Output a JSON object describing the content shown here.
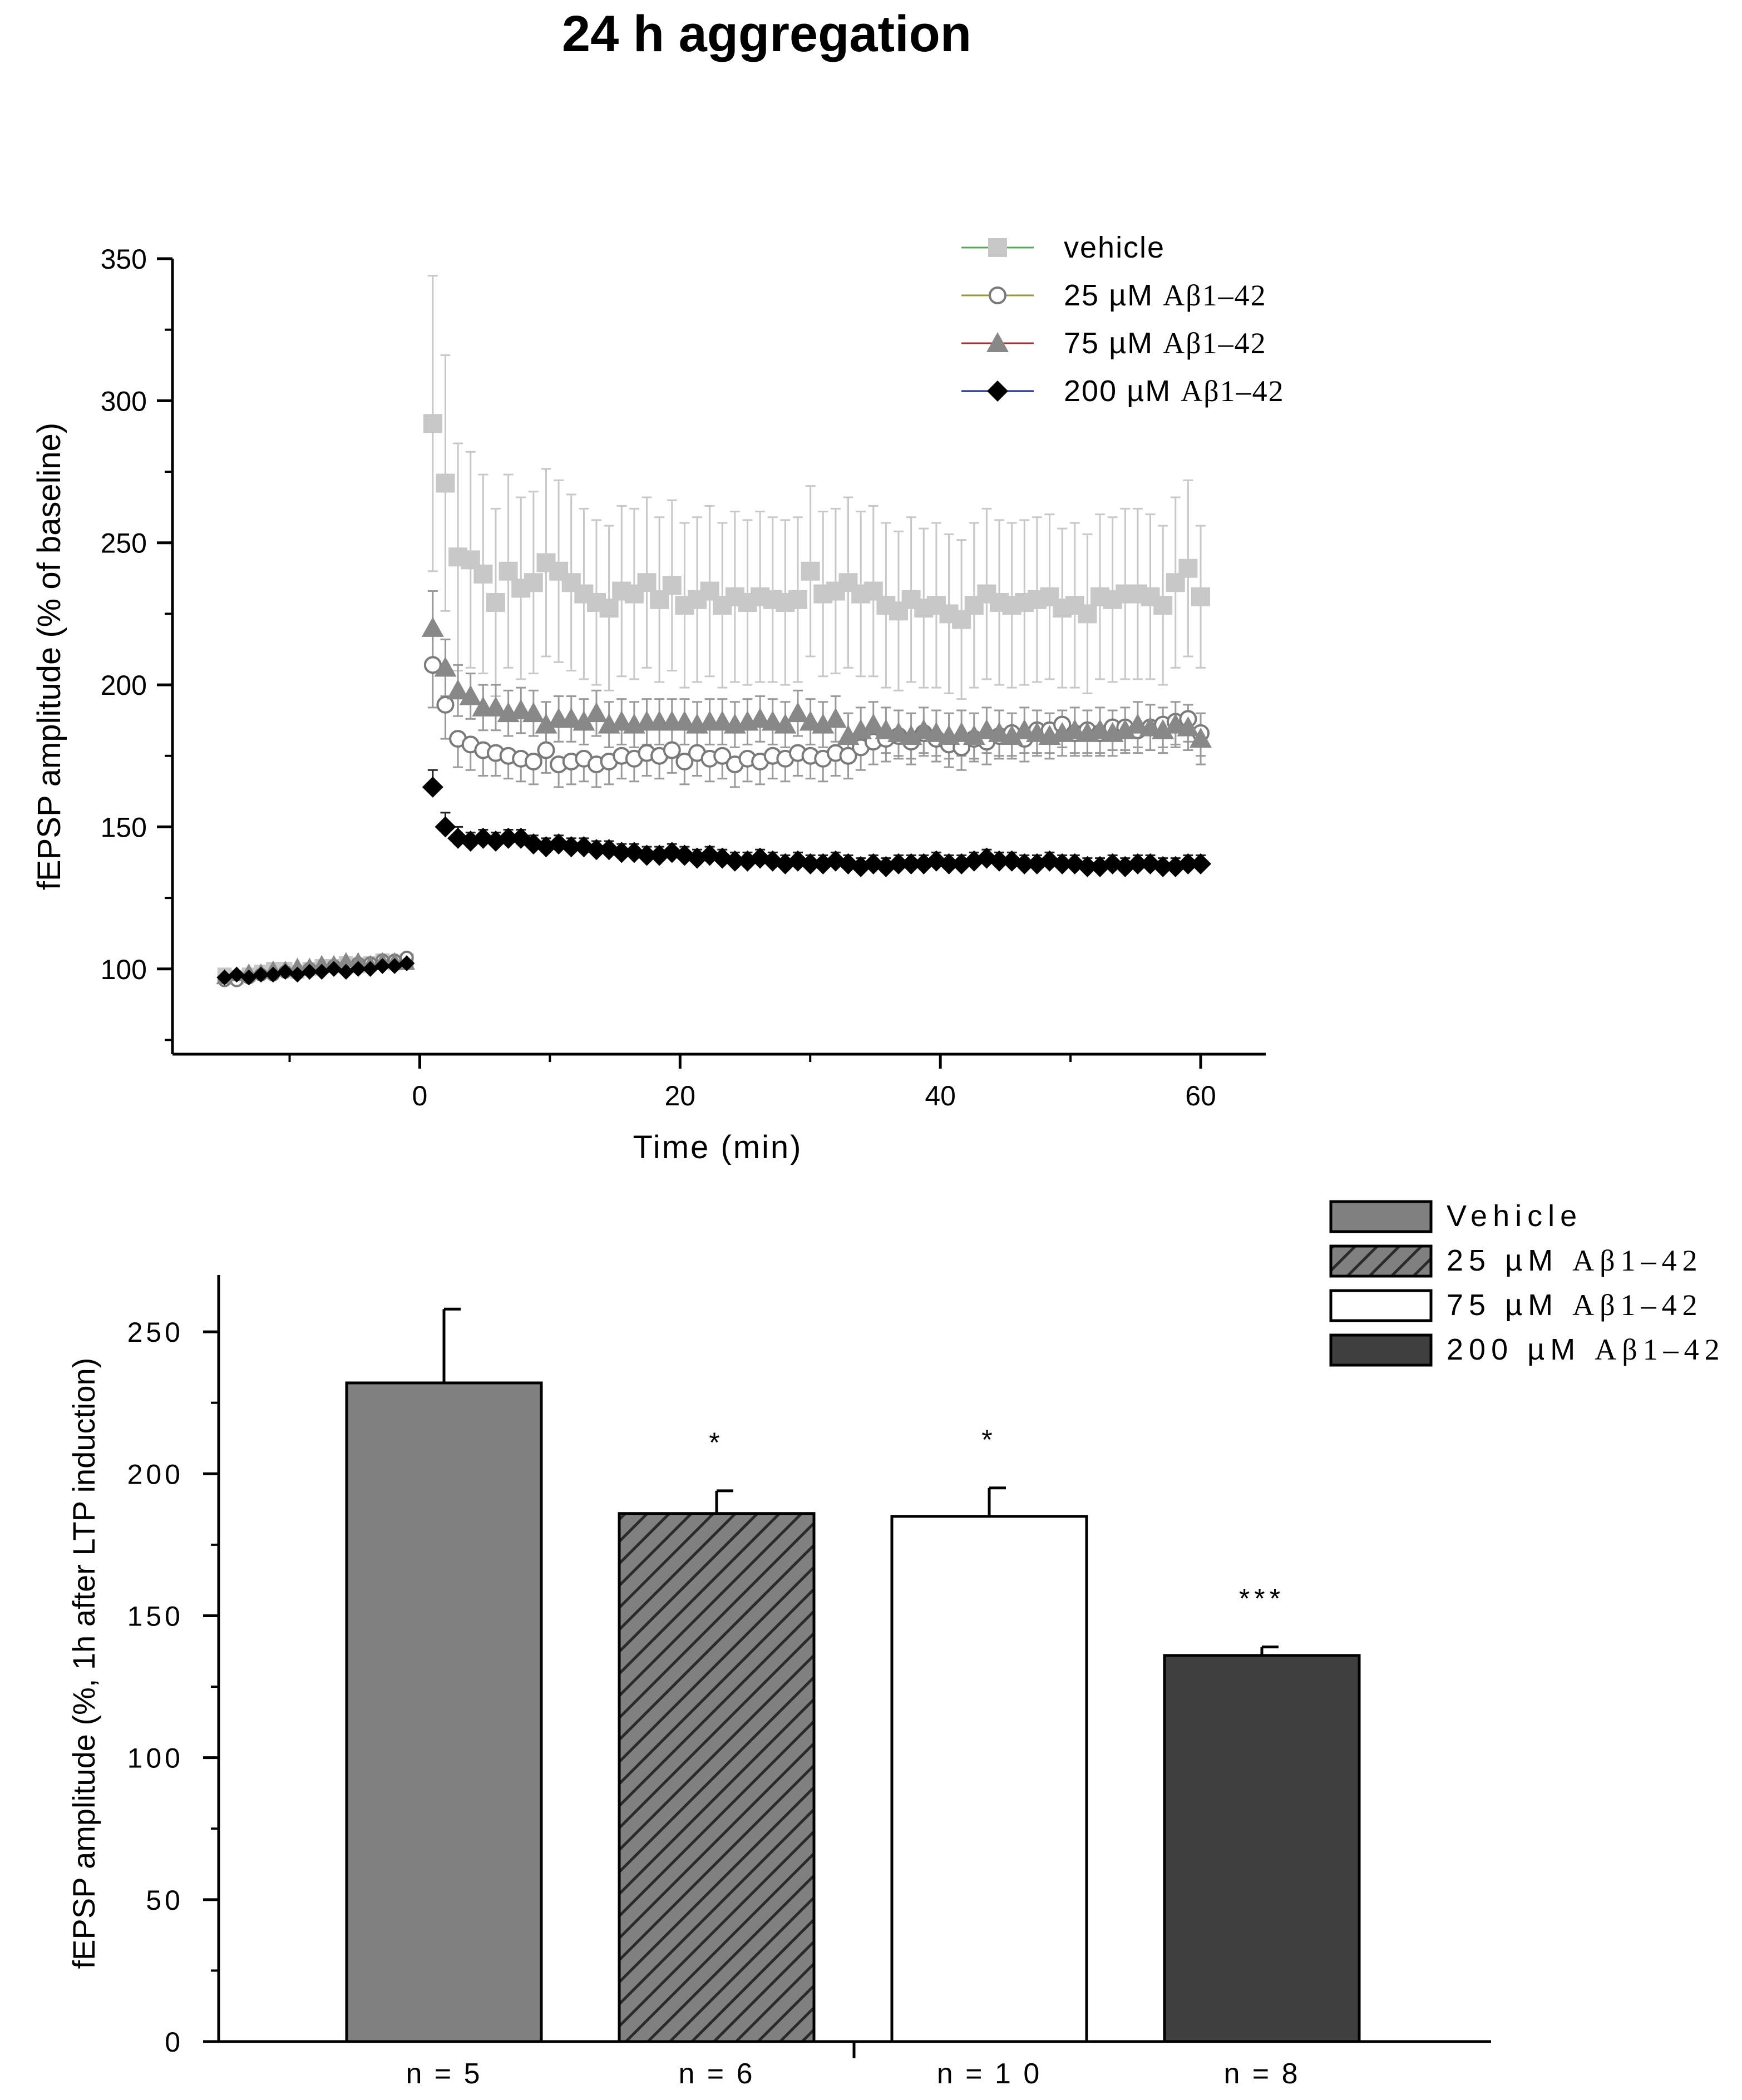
{
  "title": "24 h aggregation",
  "chart_data": [
    {
      "type": "line",
      "xlabel": "Time (min)",
      "ylabel": "fEPSP amplitude (% of baseline)",
      "xlim": [
        -19,
        65
      ],
      "ylim": [
        70,
        350
      ],
      "xticks": [
        0,
        20,
        40,
        60
      ],
      "yticks": [
        100,
        150,
        200,
        250,
        300,
        350
      ],
      "legend_position": "top-right",
      "series": [
        {
          "name": "vehicle",
          "line_color": "#4caf50",
          "marker": "square",
          "marker_color": "#c8c8c8",
          "baseline": [
            98,
            97,
            98,
            99,
            100,
            100,
            99,
            100,
            101,
            101,
            102,
            101,
            102,
            103,
            102,
            103
          ],
          "post": [
            292,
            271,
            245,
            244,
            239,
            229,
            240,
            234,
            236,
            243,
            240,
            236,
            232,
            229,
            227,
            233,
            232,
            236,
            230,
            235,
            228,
            230,
            233,
            228,
            231,
            229,
            231,
            230,
            229,
            230,
            240,
            232,
            233,
            236,
            232,
            233,
            228,
            226,
            230,
            227,
            228,
            225,
            223,
            228,
            232,
            229,
            228,
            229,
            230,
            231,
            227,
            228,
            225,
            231,
            230,
            232,
            232,
            231,
            228,
            236,
            241,
            231
          ],
          "post_error": [
            52,
            45,
            40,
            38,
            35,
            33,
            34,
            32,
            32,
            33,
            32,
            31,
            30,
            29,
            29,
            30,
            30,
            30,
            29,
            30,
            29,
            29,
            30,
            29,
            30,
            29,
            30,
            29,
            29,
            29,
            30,
            29,
            29,
            30,
            29,
            30,
            29,
            28,
            29,
            28,
            29,
            28,
            28,
            29,
            30,
            29,
            29,
            29,
            29,
            29,
            28,
            29,
            28,
            29,
            29,
            30,
            30,
            29,
            28,
            30,
            31,
            25
          ]
        },
        {
          "name": "25 µM Aβ1–42",
          "line_color": "#9a9a2a",
          "marker": "circle",
          "marker_color": "#ffffff",
          "baseline": [
            96,
            96,
            97,
            98,
            98,
            99,
            99,
            100,
            100,
            101,
            101,
            102,
            102,
            103,
            103,
            104
          ],
          "post": [
            207,
            193,
            181,
            179,
            177,
            176,
            175,
            174,
            173,
            177,
            172,
            173,
            174,
            172,
            173,
            175,
            174,
            176,
            175,
            177,
            173,
            176,
            174,
            175,
            172,
            174,
            173,
            175,
            174,
            176,
            175,
            174,
            176,
            175,
            178,
            180,
            181,
            182,
            180,
            183,
            181,
            179,
            178,
            181,
            180,
            182,
            183,
            181,
            184,
            184,
            186,
            183,
            184,
            183,
            185,
            185,
            184,
            185,
            186,
            187,
            188,
            183
          ],
          "post_error": [
            15,
            12,
            10,
            9,
            9,
            8,
            8,
            8,
            8,
            8,
            8,
            8,
            8,
            8,
            8,
            8,
            8,
            8,
            8,
            8,
            8,
            8,
            8,
            8,
            8,
            8,
            8,
            8,
            8,
            8,
            8,
            8,
            8,
            8,
            8,
            8,
            8,
            8,
            8,
            8,
            8,
            8,
            8,
            8,
            8,
            8,
            8,
            8,
            8,
            8,
            8,
            8,
            8,
            8,
            8,
            8,
            8,
            8,
            8,
            8,
            8,
            8
          ]
        },
        {
          "name": "75 µM Aβ1–42",
          "line_color": "#b03030",
          "marker": "triangle",
          "marker_color": "#888888",
          "baseline": [
            97,
            98,
            99,
            99,
            100,
            100,
            101,
            101,
            102,
            102,
            103,
            103,
            102,
            103,
            103,
            102
          ],
          "post": [
            220,
            206,
            198,
            196,
            192,
            192,
            190,
            191,
            190,
            186,
            188,
            188,
            187,
            190,
            186,
            187,
            186,
            187,
            187,
            187,
            187,
            186,
            187,
            187,
            186,
            187,
            188,
            187,
            186,
            190,
            187,
            186,
            188,
            182,
            184,
            186,
            184,
            183,
            182,
            184,
            183,
            182,
            183,
            182,
            184,
            183,
            182,
            184,
            183,
            182,
            183,
            184,
            183,
            184,
            183,
            184,
            186,
            185,
            184,
            186,
            185,
            181
          ],
          "post_error": [
            13,
            10,
            9,
            8,
            8,
            8,
            8,
            8,
            8,
            8,
            8,
            8,
            8,
            8,
            8,
            8,
            8,
            8,
            8,
            8,
            8,
            8,
            8,
            8,
            8,
            8,
            8,
            8,
            8,
            8,
            8,
            8,
            8,
            8,
            8,
            8,
            8,
            8,
            8,
            8,
            8,
            8,
            8,
            8,
            8,
            8,
            8,
            8,
            8,
            8,
            8,
            8,
            8,
            8,
            8,
            8,
            8,
            8,
            8,
            8,
            8,
            9
          ]
        },
        {
          "name": "200 µM Aβ1–42",
          "line_color": "#1a2a90",
          "marker": "diamond",
          "marker_color": "#000000",
          "baseline": [
            97,
            98,
            97,
            98,
            98,
            99,
            98,
            99,
            99,
            100,
            99,
            100,
            100,
            101,
            101,
            102
          ],
          "post": [
            164,
            150,
            146,
            145,
            146,
            145,
            146,
            146,
            144,
            143,
            144,
            143,
            143,
            142,
            142,
            141,
            141,
            140,
            140,
            141,
            140,
            139,
            140,
            139,
            138,
            138,
            139,
            138,
            137,
            138,
            137,
            137,
            138,
            137,
            136,
            137,
            136,
            137,
            137,
            137,
            138,
            137,
            137,
            138,
            139,
            138,
            138,
            137,
            137,
            138,
            137,
            137,
            136,
            136,
            137,
            136,
            137,
            137,
            136,
            136,
            137,
            137
          ],
          "post_error": [
            6,
            5,
            4,
            3,
            3,
            3,
            3,
            3,
            3,
            3,
            3,
            3,
            3,
            3,
            3,
            3,
            3,
            3,
            3,
            3,
            3,
            3,
            3,
            3,
            3,
            3,
            3,
            3,
            3,
            3,
            3,
            3,
            3,
            3,
            3,
            3,
            3,
            3,
            3,
            3,
            3,
            3,
            3,
            3,
            3,
            3,
            3,
            3,
            3,
            3,
            3,
            3,
            3,
            3,
            3,
            3,
            3,
            3,
            3,
            3,
            3,
            3
          ]
        }
      ]
    },
    {
      "type": "bar",
      "ylabel": "fEPSP amplitude (%, 1h after LTP induction)",
      "ylim": [
        0,
        270
      ],
      "yticks": [
        0,
        50,
        100,
        150,
        200,
        250
      ],
      "legend_position": "top-right",
      "categories": [
        "Vehicle",
        "25 µM Aβ1–42",
        "75 µM Aβ1–42",
        "200 µM Aβ1–42"
      ],
      "values": [
        232,
        186,
        185,
        136
      ],
      "errors": [
        26,
        8,
        10,
        3
      ],
      "fills": [
        "#808080",
        "hatch",
        "#ffffff",
        "#404040"
      ],
      "significance": [
        "",
        "*",
        "*",
        "***"
      ],
      "n_labels": [
        "n = 5",
        "n = 6",
        "n = 1 0",
        "n = 8"
      ]
    }
  ]
}
